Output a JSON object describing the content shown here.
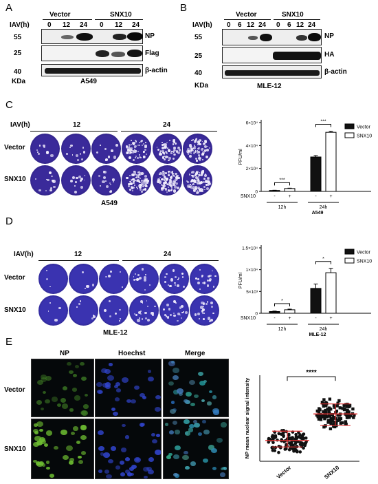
{
  "panels": {
    "a": "A",
    "b": "B",
    "c": "C",
    "d": "D",
    "e": "E"
  },
  "panel_a": {
    "iav_label": "IAV(h)",
    "groups": [
      "Vector",
      "SNX10"
    ],
    "timepoints": [
      "0",
      "12",
      "24",
      "0",
      "12",
      "24"
    ],
    "mw": [
      "55",
      "25",
      "40"
    ],
    "bands": [
      "NP",
      "Flag",
      "β-actin"
    ],
    "kda": "KDa",
    "cell_line": "A549"
  },
  "panel_b": {
    "iav_label": "IAV(h)",
    "groups": [
      "Vector",
      "SNX10"
    ],
    "timepoints": [
      "0",
      "6",
      "12",
      "24",
      "0",
      "6",
      "12",
      "24"
    ],
    "mw": [
      "55",
      "25",
      "40"
    ],
    "bands": [
      "NP",
      "HA",
      "β-actin"
    ],
    "kda": "KDa",
    "cell_line": "MLE-12"
  },
  "panel_c": {
    "iav_label": "IAV(h)",
    "times": [
      "12",
      "24"
    ],
    "rows": [
      "Vector",
      "SNX10"
    ],
    "cell_line": "A549"
  },
  "panel_d": {
    "iav_label": "IAV(h)",
    "times": [
      "12",
      "24"
    ],
    "rows": [
      "Vector",
      "SNX10"
    ],
    "cell_line": "MLE-12"
  },
  "panel_e": {
    "columns": [
      "NP",
      "Hoechst",
      "Merge"
    ],
    "rows": [
      "Vector",
      "SNX10"
    ]
  },
  "colors": {
    "plaque_c": "#3a2a9a",
    "plaque_d": "#3a33b0",
    "np_green": "#4fa52a",
    "hoechst_blue": "#3040d0",
    "mean_line": "#e03030"
  },
  "chart_data": [
    {
      "type": "bar",
      "ylabel": "PFU/ml",
      "yticks": [
        "0",
        "2×10⁴",
        "4×10⁴",
        "6×10⁴"
      ],
      "ylim": [
        0,
        60000
      ],
      "categories": [
        "12h",
        "24h"
      ],
      "series": [
        {
          "name": "Vector",
          "values": [
            800,
            30000
          ],
          "errors": [
            200,
            1200
          ]
        },
        {
          "name": "SNX10",
          "values": [
            2500,
            51500
          ],
          "errors": [
            300,
            1000
          ]
        }
      ],
      "row_label": "SNX10",
      "signs": [
        "-",
        "+",
        "-",
        "+"
      ],
      "significance": [
        "***",
        "***"
      ],
      "xlabel": "A549",
      "legend": "top-right"
    },
    {
      "type": "bar",
      "ylabel": "PFU/ml",
      "yticks": [
        "0",
        "5×10³",
        "1×10⁴",
        "1.5×10⁴"
      ],
      "ylim": [
        0,
        15000
      ],
      "categories": [
        "12h",
        "24h"
      ],
      "series": [
        {
          "name": "Vector",
          "values": [
            400,
            5700
          ],
          "errors": [
            100,
            1000
          ]
        },
        {
          "name": "SNX10",
          "values": [
            800,
            9300
          ],
          "errors": [
            150,
            1000
          ]
        }
      ],
      "row_label": "SNX10",
      "signs": [
        "-",
        "+",
        "-",
        "+"
      ],
      "significance": [
        "*",
        "*"
      ],
      "xlabel": "MLE-12",
      "legend": "top-right"
    },
    {
      "type": "scatter",
      "ylabel": "NP mean nuclear signal intensity",
      "categories": [
        "Vector",
        "SNX10"
      ],
      "significance": "****",
      "series": [
        {
          "name": "Vector",
          "mean": 29,
          "sd_low": 20,
          "sd_high": 42,
          "min": 5,
          "max": 75
        },
        {
          "name": "SNX10",
          "mean": 66,
          "sd_low": 50,
          "sd_high": 80,
          "min": 15,
          "max": 110
        }
      ]
    }
  ]
}
